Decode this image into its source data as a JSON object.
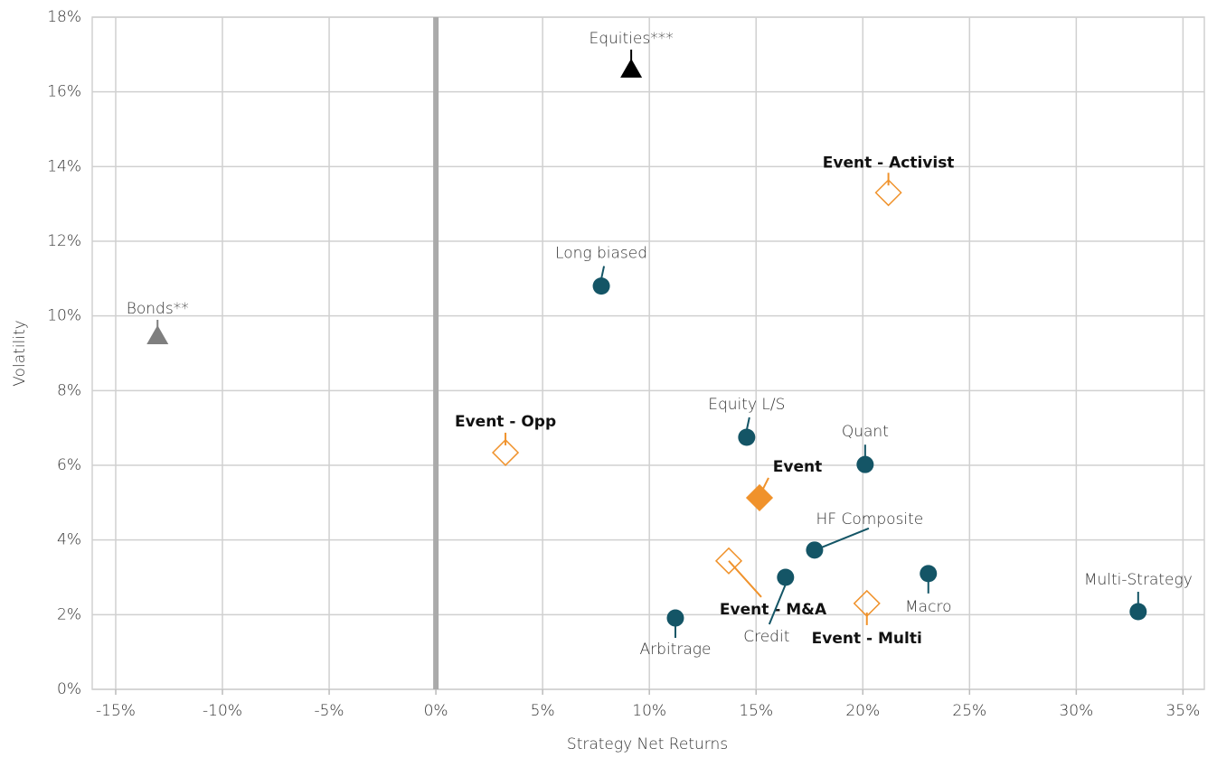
{
  "chart_data": {
    "type": "scatter",
    "x_label": "Strategy Net Returns",
    "y_label": "Volatility",
    "xlim": [
      -16.1,
      36.0
    ],
    "ylim": [
      0,
      18
    ],
    "xticks": [
      {
        "value": -15,
        "label": "-15%"
      },
      {
        "value": -10,
        "label": "-10%"
      },
      {
        "value": -5,
        "label": "-5%"
      },
      {
        "value": 0,
        "label": "0%"
      },
      {
        "value": 5,
        "label": "5%"
      },
      {
        "value": 10,
        "label": "10%"
      },
      {
        "value": 15,
        "label": "15%"
      },
      {
        "value": 20,
        "label": "20%"
      },
      {
        "value": 25,
        "label": "25%"
      },
      {
        "value": 30,
        "label": "30%"
      },
      {
        "value": 35,
        "label": "35%"
      }
    ],
    "yticks": [
      {
        "value": 0,
        "label": "0%"
      },
      {
        "value": 2,
        "label": "2%"
      },
      {
        "value": 4,
        "label": "4%"
      },
      {
        "value": 6,
        "label": "6%"
      },
      {
        "value": 8,
        "label": "8%"
      },
      {
        "value": 10,
        "label": "10%"
      },
      {
        "value": 12,
        "label": "12%"
      },
      {
        "value": 14,
        "label": "14%"
      },
      {
        "value": 16,
        "label": "16%"
      },
      {
        "value": 18,
        "label": "18%"
      }
    ],
    "grid": true,
    "points": [
      {
        "label": "Equities***",
        "x": 9.15,
        "y": 16.6,
        "marker": "triangle",
        "color": "#000000",
        "bold": false
      },
      {
        "label": "Bonds**",
        "x": -13.04,
        "y": 9.46,
        "marker": "triangle",
        "color": "#7f7f7f",
        "bold": false
      },
      {
        "label": "Event - Activist",
        "x": 21.2,
        "y": 13.3,
        "marker": "open-diamond",
        "color": "#f0922b",
        "bold": true
      },
      {
        "label": "Long biased",
        "x": 7.75,
        "y": 10.8,
        "marker": "circle",
        "color": "#145566",
        "bold": false
      },
      {
        "label": "Event - Opp",
        "x": 3.26,
        "y": 6.34,
        "marker": "open-diamond",
        "color": "#f0922b",
        "bold": true
      },
      {
        "label": "Equity L/S",
        "x": 14.56,
        "y": 6.75,
        "marker": "circle",
        "color": "#145566",
        "bold": false
      },
      {
        "label": "Quant",
        "x": 20.11,
        "y": 6.02,
        "marker": "circle",
        "color": "#145566",
        "bold": false
      },
      {
        "label": "Event",
        "x": 15.16,
        "y": 5.13,
        "marker": "diamond",
        "color": "#f0922b",
        "bold": true
      },
      {
        "label": "HF Composite",
        "x": 17.74,
        "y": 3.73,
        "marker": "circle",
        "color": "#145566",
        "bold": false
      },
      {
        "label": "Event - M&A",
        "x": 13.72,
        "y": 3.44,
        "marker": "open-diamond",
        "color": "#f0922b",
        "bold": true
      },
      {
        "label": "Credit",
        "x": 16.38,
        "y": 3.0,
        "marker": "circle",
        "color": "#145566",
        "bold": false
      },
      {
        "label": "Macro",
        "x": 23.07,
        "y": 3.1,
        "marker": "circle",
        "color": "#145566",
        "bold": false
      },
      {
        "label": "Event - Multi",
        "x": 20.19,
        "y": 2.3,
        "marker": "open-diamond",
        "color": "#f0922b",
        "bold": true
      },
      {
        "label": "Multi-Strategy",
        "x": 32.9,
        "y": 2.08,
        "marker": "circle",
        "color": "#145566",
        "bold": false
      },
      {
        "label": "Arbitrage",
        "x": 11.22,
        "y": 1.91,
        "marker": "circle",
        "color": "#145566",
        "bold": false
      }
    ]
  }
}
